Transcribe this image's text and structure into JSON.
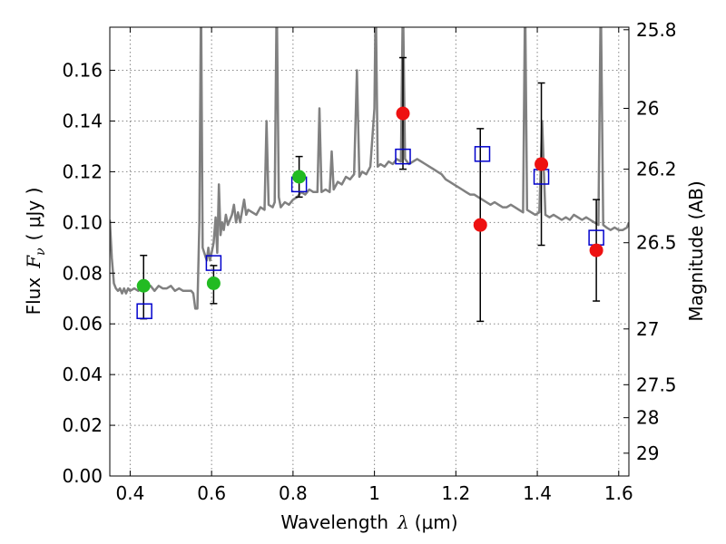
{
  "chart_data": {
    "type": "scatter",
    "title": "",
    "xlabel": "Wavelength",
    "xlabel_symbol": "λ",
    "xlabel_unit": "(μm)",
    "ylabel": "Flux",
    "ylabel_symbol": "F",
    "ylabel_subscript": "ν",
    "ylabel_unit": "( μJy )",
    "y2label": "Magnitude (AB)",
    "xlim": [
      0.35,
      1.625
    ],
    "ylim": [
      0.0,
      0.177
    ],
    "grid": true,
    "x_ticks": [
      0.4,
      0.6,
      0.8,
      1.0,
      1.2,
      1.4,
      1.6
    ],
    "x_tick_labels": [
      "0.4",
      "0.6",
      "0.8",
      "1",
      "1.2",
      "1.4",
      "1.6"
    ],
    "y_ticks": [
      0.0,
      0.02,
      0.04,
      0.06,
      0.08,
      0.1,
      0.12,
      0.14,
      0.16
    ],
    "y_tick_labels": [
      "0.00",
      "0.02",
      "0.04",
      "0.06",
      "0.08",
      "0.10",
      "0.12",
      "0.14",
      "0.16"
    ],
    "y2_ticks": [
      {
        "label": "25.8",
        "flux": 0.176
      },
      {
        "label": "26",
        "flux": 0.145
      },
      {
        "label": "26.2",
        "flux": 0.121
      },
      {
        "label": "26.5",
        "flux": 0.092
      },
      {
        "label": "27",
        "flux": 0.058
      },
      {
        "label": "27.5",
        "flux": 0.036
      },
      {
        "label": "28",
        "flux": 0.023
      },
      {
        "label": "29",
        "flux": 0.009
      }
    ],
    "colors": {
      "spectrum": "#808080",
      "model": "#0000cc",
      "green": "#22bb22",
      "red": "#ee1111",
      "error": "#000000",
      "grid": "#888888"
    },
    "series": [
      {
        "marker": "line",
        "points": [
          [
            0.35,
            0.101
          ],
          [
            0.355,
            0.086
          ],
          [
            0.36,
            0.076
          ],
          [
            0.365,
            0.074
          ],
          [
            0.37,
            0.073
          ],
          [
            0.375,
            0.074
          ],
          [
            0.38,
            0.072
          ],
          [
            0.385,
            0.074
          ],
          [
            0.39,
            0.072
          ],
          [
            0.395,
            0.074
          ],
          [
            0.4,
            0.073
          ],
          [
            0.41,
            0.074
          ],
          [
            0.42,
            0.073
          ],
          [
            0.43,
            0.075
          ],
          [
            0.44,
            0.074
          ],
          [
            0.45,
            0.075
          ],
          [
            0.46,
            0.073
          ],
          [
            0.47,
            0.075
          ],
          [
            0.48,
            0.074
          ],
          [
            0.49,
            0.074
          ],
          [
            0.5,
            0.075
          ],
          [
            0.51,
            0.073
          ],
          [
            0.52,
            0.074
          ],
          [
            0.53,
            0.073
          ],
          [
            0.54,
            0.073
          ],
          [
            0.55,
            0.073
          ],
          [
            0.555,
            0.072
          ],
          [
            0.56,
            0.066
          ],
          [
            0.565,
            0.066
          ],
          [
            0.57,
            0.1
          ],
          [
            0.574,
            0.19
          ],
          [
            0.578,
            0.09
          ],
          [
            0.582,
            0.088
          ],
          [
            0.588,
            0.085
          ],
          [
            0.592,
            0.09
          ],
          [
            0.596,
            0.085
          ],
          [
            0.6,
            0.088
          ],
          [
            0.605,
            0.092
          ],
          [
            0.61,
            0.102
          ],
          [
            0.614,
            0.088
          ],
          [
            0.618,
            0.115
          ],
          [
            0.622,
            0.095
          ],
          [
            0.626,
            0.1
          ],
          [
            0.63,
            0.097
          ],
          [
            0.635,
            0.103
          ],
          [
            0.64,
            0.099
          ],
          [
            0.65,
            0.103
          ],
          [
            0.655,
            0.107
          ],
          [
            0.66,
            0.1
          ],
          [
            0.665,
            0.104
          ],
          [
            0.67,
            0.1
          ],
          [
            0.68,
            0.109
          ],
          [
            0.685,
            0.103
          ],
          [
            0.69,
            0.105
          ],
          [
            0.7,
            0.104
          ],
          [
            0.71,
            0.103
          ],
          [
            0.72,
            0.106
          ],
          [
            0.73,
            0.105
          ],
          [
            0.735,
            0.14
          ],
          [
            0.74,
            0.107
          ],
          [
            0.75,
            0.106
          ],
          [
            0.755,
            0.108
          ],
          [
            0.76,
            0.19
          ],
          [
            0.765,
            0.11
          ],
          [
            0.77,
            0.106
          ],
          [
            0.78,
            0.108
          ],
          [
            0.79,
            0.107
          ],
          [
            0.8,
            0.109
          ],
          [
            0.81,
            0.11
          ],
          [
            0.82,
            0.112
          ],
          [
            0.83,
            0.111
          ],
          [
            0.84,
            0.113
          ],
          [
            0.85,
            0.112
          ],
          [
            0.86,
            0.112
          ],
          [
            0.865,
            0.145
          ],
          [
            0.87,
            0.112
          ],
          [
            0.88,
            0.113
          ],
          [
            0.89,
            0.112
          ],
          [
            0.895,
            0.128
          ],
          [
            0.9,
            0.113
          ],
          [
            0.91,
            0.116
          ],
          [
            0.92,
            0.115
          ],
          [
            0.93,
            0.118
          ],
          [
            0.94,
            0.117
          ],
          [
            0.95,
            0.119
          ],
          [
            0.957,
            0.16
          ],
          [
            0.963,
            0.118
          ],
          [
            0.97,
            0.12
          ],
          [
            0.98,
            0.119
          ],
          [
            0.99,
            0.122
          ],
          [
            1.0,
            0.145
          ],
          [
            1.003,
            0.19
          ],
          [
            1.008,
            0.122
          ],
          [
            1.015,
            0.123
          ],
          [
            1.025,
            0.122
          ],
          [
            1.035,
            0.124
          ],
          [
            1.045,
            0.123
          ],
          [
            1.055,
            0.125
          ],
          [
            1.065,
            0.124
          ],
          [
            1.07,
            0.19
          ],
          [
            1.075,
            0.125
          ],
          [
            1.085,
            0.123
          ],
          [
            1.095,
            0.124
          ],
          [
            1.105,
            0.125
          ],
          [
            1.115,
            0.124
          ],
          [
            1.125,
            0.123
          ],
          [
            1.135,
            0.122
          ],
          [
            1.145,
            0.121
          ],
          [
            1.155,
            0.12
          ],
          [
            1.165,
            0.119
          ],
          [
            1.175,
            0.117
          ],
          [
            1.185,
            0.116
          ],
          [
            1.195,
            0.115
          ],
          [
            1.205,
            0.114
          ],
          [
            1.215,
            0.113
          ],
          [
            1.225,
            0.112
          ],
          [
            1.235,
            0.111
          ],
          [
            1.245,
            0.111
          ],
          [
            1.255,
            0.11
          ],
          [
            1.265,
            0.109
          ],
          [
            1.275,
            0.108
          ],
          [
            1.285,
            0.107
          ],
          [
            1.295,
            0.108
          ],
          [
            1.305,
            0.107
          ],
          [
            1.315,
            0.106
          ],
          [
            1.325,
            0.106
          ],
          [
            1.335,
            0.107
          ],
          [
            1.345,
            0.106
          ],
          [
            1.355,
            0.105
          ],
          [
            1.365,
            0.104
          ],
          [
            1.37,
            0.19
          ],
          [
            1.375,
            0.105
          ],
          [
            1.385,
            0.104
          ],
          [
            1.395,
            0.103
          ],
          [
            1.405,
            0.104
          ],
          [
            1.412,
            0.14
          ],
          [
            1.42,
            0.103
          ],
          [
            1.43,
            0.102
          ],
          [
            1.44,
            0.103
          ],
          [
            1.45,
            0.102
          ],
          [
            1.46,
            0.101
          ],
          [
            1.47,
            0.102
          ],
          [
            1.48,
            0.101
          ],
          [
            1.49,
            0.103
          ],
          [
            1.5,
            0.102
          ],
          [
            1.51,
            0.101
          ],
          [
            1.52,
            0.102
          ],
          [
            1.53,
            0.101
          ],
          [
            1.54,
            0.1
          ],
          [
            1.55,
            0.099
          ],
          [
            1.556,
            0.19
          ],
          [
            1.562,
            0.099
          ],
          [
            1.57,
            0.098
          ],
          [
            1.58,
            0.097
          ],
          [
            1.59,
            0.098
          ],
          [
            1.6,
            0.097
          ],
          [
            1.61,
            0.097
          ],
          [
            1.62,
            0.098
          ],
          [
            1.625,
            0.1
          ]
        ]
      },
      {
        "marker": "open-square",
        "points": [
          [
            0.435,
            0.065
          ],
          [
            0.605,
            0.084
          ],
          [
            0.815,
            0.115
          ],
          [
            1.07,
            0.126
          ],
          [
            1.265,
            0.127
          ],
          [
            1.41,
            0.118
          ],
          [
            1.545,
            0.094
          ]
        ]
      },
      {
        "marker": "green-circle",
        "points": [
          [
            0.433,
            0.075
          ],
          [
            0.605,
            0.076
          ],
          [
            0.815,
            0.118
          ]
        ],
        "errors": [
          [
            0.433,
            0.062,
            0.087
          ],
          [
            0.605,
            0.068,
            0.083
          ],
          [
            0.815,
            0.11,
            0.126
          ]
        ]
      },
      {
        "marker": "red-circle",
        "points": [
          [
            1.07,
            0.143
          ],
          [
            1.26,
            0.099
          ],
          [
            1.41,
            0.123
          ],
          [
            1.545,
            0.089
          ]
        ],
        "errors": [
          [
            1.07,
            0.121,
            0.165
          ],
          [
            1.26,
            0.061,
            0.137
          ],
          [
            1.41,
            0.091,
            0.155
          ],
          [
            1.545,
            0.069,
            0.109
          ]
        ]
      }
    ]
  }
}
